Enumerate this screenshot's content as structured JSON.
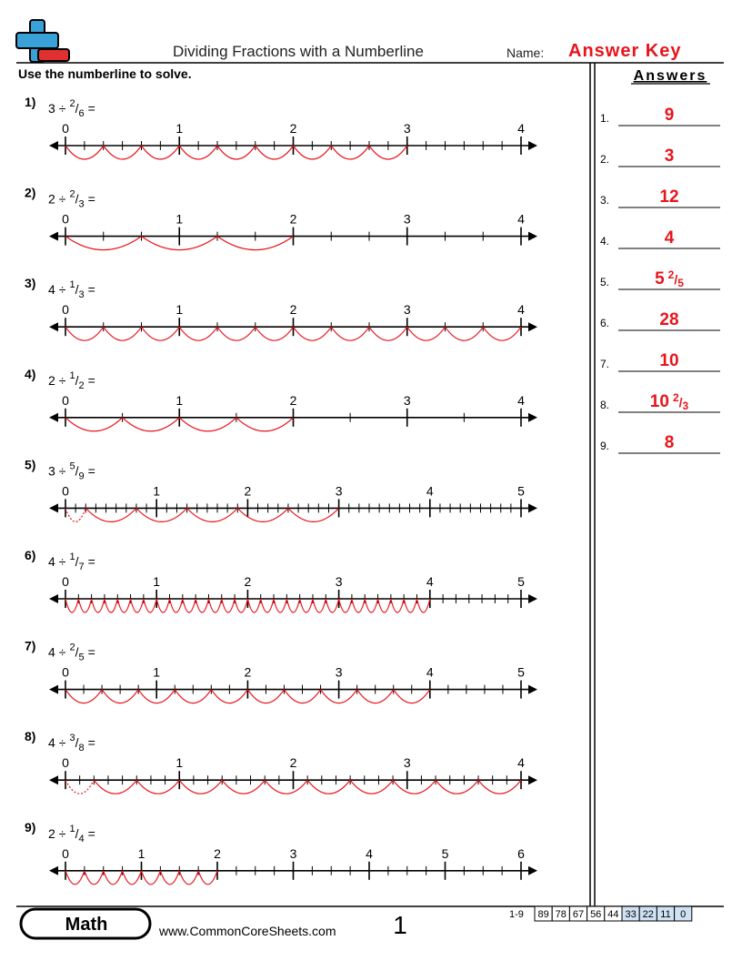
{
  "header": {
    "title": "Dividing Fractions with a Numberline",
    "name_label": "Name:",
    "name_value": "Answer Key",
    "instructions": "Use the numberline to solve.",
    "answers_title": "Answers"
  },
  "symbols": {
    "divide": "÷",
    "fraction_bar": "/",
    "equals": "="
  },
  "problems": [
    {
      "number": "1)",
      "whole": 3,
      "numerator": 2,
      "denominator": 6,
      "labels": [
        0,
        1,
        2,
        3,
        4
      ]
    },
    {
      "number": "2)",
      "whole": 2,
      "numerator": 2,
      "denominator": 3,
      "labels": [
        0,
        1,
        2,
        3,
        4
      ]
    },
    {
      "number": "3)",
      "whole": 4,
      "numerator": 1,
      "denominator": 3,
      "labels": [
        0,
        1,
        2,
        3,
        4
      ]
    },
    {
      "number": "4)",
      "whole": 2,
      "numerator": 1,
      "denominator": 2,
      "labels": [
        0,
        1,
        2,
        3,
        4
      ]
    },
    {
      "number": "5)",
      "whole": 3,
      "numerator": 5,
      "denominator": 9,
      "labels": [
        0,
        1,
        2,
        3,
        4,
        5
      ]
    },
    {
      "number": "6)",
      "whole": 4,
      "numerator": 1,
      "denominator": 7,
      "labels": [
        0,
        1,
        2,
        3,
        4,
        5
      ]
    },
    {
      "number": "7)",
      "whole": 4,
      "numerator": 2,
      "denominator": 5,
      "labels": [
        0,
        1,
        2,
        3,
        4,
        5
      ]
    },
    {
      "number": "8)",
      "whole": 4,
      "numerator": 3,
      "denominator": 8,
      "labels": [
        0,
        1,
        2,
        3,
        4
      ]
    },
    {
      "number": "9)",
      "whole": 2,
      "numerator": 1,
      "denominator": 4,
      "labels": [
        0,
        1,
        2,
        3,
        4,
        5,
        6
      ]
    }
  ],
  "answers": [
    {
      "label": "1.",
      "whole": "9"
    },
    {
      "label": "2.",
      "whole": "3"
    },
    {
      "label": "3.",
      "whole": "12"
    },
    {
      "label": "4.",
      "whole": "4"
    },
    {
      "label": "5.",
      "whole": "5",
      "numerator": "2",
      "denominator": "5"
    },
    {
      "label": "6.",
      "whole": "28"
    },
    {
      "label": "7.",
      "whole": "10"
    },
    {
      "label": "8.",
      "whole": "10",
      "numerator": "2",
      "denominator": "3"
    },
    {
      "label": "9.",
      "whole": "8"
    }
  ],
  "footer": {
    "subject": "Math",
    "website": "www.CommonCoreSheets.com",
    "page": "1",
    "score_range": "1-9",
    "scores": [
      "89",
      "78",
      "67",
      "56",
      "44",
      "33",
      "22",
      "11",
      "0"
    ]
  }
}
